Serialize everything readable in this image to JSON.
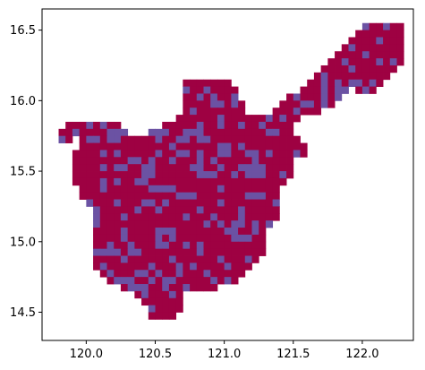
{
  "map": {
    "xlim": [
      119.68,
      122.37
    ],
    "ylim": [
      14.3,
      16.65
    ],
    "x_ticks": [
      "120.0",
      "120.5",
      "121.0",
      "121.5",
      "122.0"
    ],
    "x_tick_values": [
      120.0,
      120.5,
      121.0,
      121.5,
      122.0
    ],
    "y_ticks": [
      "14.5",
      "15.0",
      "15.5",
      "16.0",
      "16.5"
    ],
    "y_tick_values": [
      14.5,
      15.0,
      15.5,
      16.0,
      16.5
    ],
    "cell_size_deg": 0.05,
    "colors": {
      "primary": "#9e0142",
      "secondary": "#6b52a3",
      "axes": "#000000",
      "background": "#ffffff"
    },
    "rows": [
      {
        "lat": 16.5,
        "spans": [
          [
            122.0,
            122.25
          ]
        ]
      },
      {
        "lat": 16.45,
        "spans": [
          [
            121.95,
            122.25
          ]
        ]
      },
      {
        "lat": 16.4,
        "spans": [
          [
            121.9,
            122.25
          ]
        ]
      },
      {
        "lat": 16.35,
        "spans": [
          [
            121.85,
            122.25
          ]
        ]
      },
      {
        "lat": 16.3,
        "spans": [
          [
            121.8,
            122.25
          ]
        ]
      },
      {
        "lat": 16.25,
        "spans": [
          [
            121.75,
            122.25
          ]
        ]
      },
      {
        "lat": 16.2,
        "spans": [
          [
            121.7,
            122.2
          ]
        ]
      },
      {
        "lat": 16.15,
        "spans": [
          [
            121.65,
            122.15
          ]
        ]
      },
      {
        "lat": 16.1,
        "spans": [
          [
            120.7,
            121.0
          ],
          [
            121.6,
            122.1
          ]
        ]
      },
      {
        "lat": 16.05,
        "spans": [
          [
            120.7,
            121.05
          ],
          [
            121.55,
            121.85
          ],
          [
            121.95,
            122.05
          ]
        ]
      },
      {
        "lat": 16.0,
        "spans": [
          [
            120.7,
            121.05
          ],
          [
            121.45,
            121.8
          ]
        ]
      },
      {
        "lat": 15.95,
        "spans": [
          [
            120.7,
            121.1
          ],
          [
            121.4,
            121.75
          ]
        ]
      },
      {
        "lat": 15.9,
        "spans": [
          [
            120.7,
            121.1
          ],
          [
            121.35,
            121.65
          ]
        ]
      },
      {
        "lat": 15.85,
        "spans": [
          [
            120.65,
            121.5
          ]
        ]
      },
      {
        "lat": 15.8,
        "spans": [
          [
            119.85,
            120.2
          ],
          [
            120.55,
            121.45
          ]
        ]
      },
      {
        "lat": 15.75,
        "spans": [
          [
            119.8,
            120.25
          ],
          [
            120.45,
            121.45
          ]
        ]
      },
      {
        "lat": 15.7,
        "spans": [
          [
            119.8,
            119.85
          ],
          [
            119.95,
            121.5
          ]
        ]
      },
      {
        "lat": 15.65,
        "spans": [
          [
            119.95,
            121.55
          ]
        ]
      },
      {
        "lat": 15.6,
        "spans": [
          [
            119.9,
            121.55
          ]
        ]
      },
      {
        "lat": 15.55,
        "spans": [
          [
            119.9,
            121.45
          ]
        ]
      },
      {
        "lat": 15.5,
        "spans": [
          [
            119.9,
            121.45
          ]
        ]
      },
      {
        "lat": 15.45,
        "spans": [
          [
            119.9,
            121.45
          ]
        ]
      },
      {
        "lat": 15.4,
        "spans": [
          [
            119.9,
            121.4
          ]
        ]
      },
      {
        "lat": 15.35,
        "spans": [
          [
            119.95,
            121.35
          ]
        ]
      },
      {
        "lat": 15.3,
        "spans": [
          [
            119.95,
            121.35
          ]
        ]
      },
      {
        "lat": 15.25,
        "spans": [
          [
            120.0,
            121.35
          ]
        ]
      },
      {
        "lat": 15.2,
        "spans": [
          [
            120.05,
            121.35
          ]
        ]
      },
      {
        "lat": 15.15,
        "spans": [
          [
            120.05,
            121.35
          ]
        ]
      },
      {
        "lat": 15.1,
        "spans": [
          [
            120.05,
            121.3
          ]
        ]
      },
      {
        "lat": 15.05,
        "spans": [
          [
            120.05,
            121.25
          ]
        ]
      },
      {
        "lat": 15.0,
        "spans": [
          [
            120.05,
            121.25
          ]
        ]
      },
      {
        "lat": 14.95,
        "spans": [
          [
            120.05,
            121.25
          ]
        ]
      },
      {
        "lat": 14.9,
        "spans": [
          [
            120.05,
            121.25
          ]
        ]
      },
      {
        "lat": 14.85,
        "spans": [
          [
            120.05,
            121.2
          ]
        ]
      },
      {
        "lat": 14.8,
        "spans": [
          [
            120.05,
            121.15
          ]
        ]
      },
      {
        "lat": 14.75,
        "spans": [
          [
            120.1,
            121.1
          ]
        ]
      },
      {
        "lat": 14.7,
        "spans": [
          [
            120.15,
            121.05
          ]
        ]
      },
      {
        "lat": 14.65,
        "spans": [
          [
            120.25,
            120.75
          ],
          [
            120.8,
            120.9
          ]
        ]
      },
      {
        "lat": 14.6,
        "spans": [
          [
            120.35,
            120.65
          ]
        ]
      },
      {
        "lat": 14.55,
        "spans": [
          [
            120.4,
            120.65
          ]
        ]
      },
      {
        "lat": 14.5,
        "spans": [
          [
            120.45,
            120.65
          ]
        ]
      },
      {
        "lat": 14.45,
        "spans": [
          [
            120.45,
            120.6
          ]
        ]
      }
    ]
  }
}
